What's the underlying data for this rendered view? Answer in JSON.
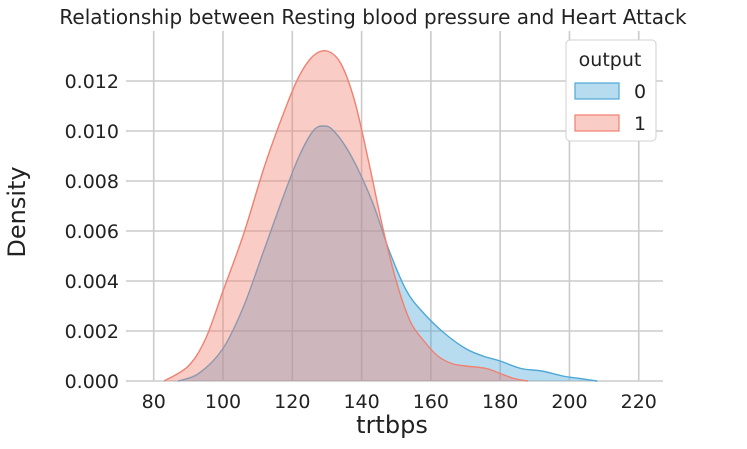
{
  "chart_data": {
    "type": "area",
    "title": "Relationship between Resting blood pressure and Heart Attack",
    "xlabel": "trtbps",
    "ylabel": "Density",
    "xlim": [
      72,
      227
    ],
    "ylim": [
      0,
      0.014
    ],
    "xticks": [
      80,
      100,
      120,
      140,
      160,
      180,
      200,
      220
    ],
    "yticks": [
      0.0,
      0.002,
      0.004,
      0.006,
      0.008,
      0.01,
      0.012
    ],
    "ytick_labels": [
      "0.000",
      "0.002",
      "0.004",
      "0.006",
      "0.008",
      "0.010",
      "0.012"
    ],
    "grid": true,
    "legend": {
      "title": "output",
      "placement": "top-right"
    },
    "series": [
      {
        "name": "0",
        "color": "#4ea8d8",
        "x": [
          87,
          93,
          100,
          106,
          112,
          118,
          122,
          126,
          129,
          132,
          137,
          143,
          148,
          153,
          158,
          164,
          170,
          175,
          180,
          186,
          192,
          198,
          203,
          208
        ],
        "y": [
          0.0,
          0.0003,
          0.0013,
          0.003,
          0.0053,
          0.0076,
          0.009,
          0.01,
          0.0102,
          0.01,
          0.009,
          0.0072,
          0.0052,
          0.0036,
          0.0027,
          0.0019,
          0.0013,
          0.001,
          0.0008,
          0.0005,
          0.0004,
          0.0002,
          0.0001,
          0.0
        ]
      },
      {
        "name": "1",
        "color": "#f08070",
        "x": [
          83,
          90,
          95,
          100,
          106,
          112,
          118,
          122,
          126,
          130,
          134,
          138,
          142,
          146,
          150,
          154,
          158,
          162,
          166,
          170,
          176,
          180,
          184,
          188
        ],
        "y": [
          0.0,
          0.0006,
          0.0017,
          0.0036,
          0.0059,
          0.0086,
          0.0109,
          0.0122,
          0.013,
          0.0132,
          0.0127,
          0.0112,
          0.0088,
          0.0062,
          0.004,
          0.0024,
          0.0016,
          0.001,
          0.0007,
          0.0006,
          0.0005,
          0.0003,
          0.0001,
          0.0
        ]
      }
    ]
  }
}
